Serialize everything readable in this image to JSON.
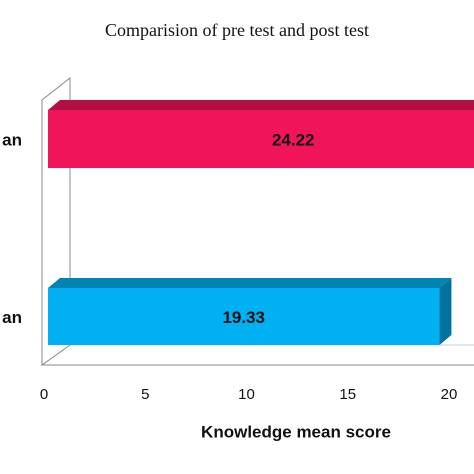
{
  "chart_data": {
    "type": "bar",
    "orientation": "horizontal",
    "title": "Comparision of pre test and post test",
    "x_label": "Knowledge mean score",
    "categories": [
      "an",
      "an"
    ],
    "values": [
      24.22,
      19.33
    ],
    "colors": [
      "#f0145a",
      "#00b0f0"
    ],
    "xlim": [
      0,
      25
    ],
    "xticks": [
      0,
      5,
      10,
      15,
      20
    ]
  }
}
